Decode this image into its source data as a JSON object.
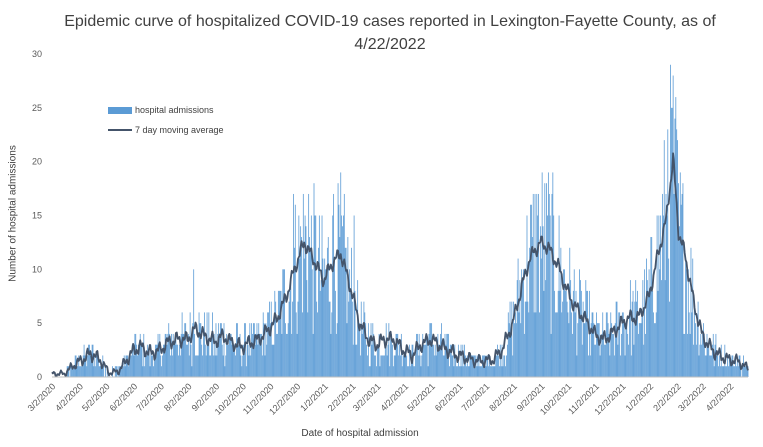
{
  "chart_data": {
    "type": "bar",
    "title": "Epidemic curve of hospitalized COVID-19 cases reported in Lexington-Fayette County, as of 4/22/2022",
    "xlabel": "Date of hospital admission",
    "ylabel": "Number of hospital admissions",
    "ylim": [
      0,
      30
    ],
    "yticks": [
      0,
      5,
      10,
      15,
      20,
      25,
      30
    ],
    "xlim": [
      "3/2/2020",
      "4/22/2022"
    ],
    "x_tick_labels": [
      "3/2/2020",
      "4/2/2020",
      "5/2/2020",
      "6/2/2020",
      "7/2/2020",
      "8/2/2020",
      "9/2/2020",
      "10/2/2020",
      "11/2/2020",
      "12/2/2020",
      "1/2/2021",
      "2/2/2021",
      "3/2/2021",
      "4/2/2021",
      "5/2/2021",
      "6/2/2021",
      "7/2/2021",
      "8/2/2021",
      "9/2/2021",
      "10/2/2021",
      "11/2/2021",
      "12/2/2021",
      "1/2/2022",
      "2/2/2022",
      "3/2/2022",
      "4/2/2022"
    ],
    "legend": {
      "position": "top-left",
      "entries": [
        "hospital admissions",
        "7 day moving average"
      ]
    },
    "grid": false,
    "colors": {
      "bars": "#5b9bd5",
      "moving_average": "#44546a"
    },
    "series": [
      {
        "name": "7 day moving average",
        "kind": "line",
        "points": [
          [
            "3/2/2020",
            0.3
          ],
          [
            "3/16/2020",
            0.3
          ],
          [
            "3/25/2020",
            1.0
          ],
          [
            "4/5/2020",
            1.6
          ],
          [
            "4/15/2020",
            2.2
          ],
          [
            "4/25/2020",
            1.6
          ],
          [
            "5/5/2020",
            0.4
          ],
          [
            "5/15/2020",
            0.5
          ],
          [
            "5/25/2020",
            1.6
          ],
          [
            "6/2/2020",
            2.5
          ],
          [
            "6/10/2020",
            2.8
          ],
          [
            "6/20/2020",
            2.2
          ],
          [
            "7/1/2020",
            2.5
          ],
          [
            "7/10/2020",
            3.2
          ],
          [
            "7/20/2020",
            3.5
          ],
          [
            "8/1/2020",
            3.5
          ],
          [
            "8/10/2020",
            4.5
          ],
          [
            "8/20/2020",
            3.8
          ],
          [
            "9/1/2020",
            3.3
          ],
          [
            "9/10/2020",
            3.8
          ],
          [
            "9/20/2020",
            3.2
          ],
          [
            "10/1/2020",
            2.8
          ],
          [
            "10/10/2020",
            3.2
          ],
          [
            "10/20/2020",
            3.5
          ],
          [
            "11/1/2020",
            4.5
          ],
          [
            "11/10/2020",
            5.5
          ],
          [
            "11/20/2020",
            7.5
          ],
          [
            "12/1/2020",
            10.5
          ],
          [
            "12/10/2020",
            12.5
          ],
          [
            "12/20/2020",
            11.0
          ],
          [
            "1/1/2021",
            9.0
          ],
          [
            "1/10/2021",
            10.5
          ],
          [
            "1/20/2021",
            11.5
          ],
          [
            "2/1/2021",
            8.0
          ],
          [
            "2/10/2021",
            5.0
          ],
          [
            "2/20/2021",
            3.5
          ],
          [
            "3/1/2021",
            3.0
          ],
          [
            "3/10/2021",
            3.5
          ],
          [
            "3/20/2021",
            3.5
          ],
          [
            "4/1/2021",
            2.5
          ],
          [
            "4/10/2021",
            2.0
          ],
          [
            "4/20/2021",
            3.0
          ],
          [
            "5/1/2021",
            3.5
          ],
          [
            "5/10/2021",
            3.0
          ],
          [
            "5/20/2021",
            2.5
          ],
          [
            "6/1/2021",
            2.0
          ],
          [
            "6/10/2021",
            1.8
          ],
          [
            "6/20/2021",
            1.5
          ],
          [
            "7/1/2021",
            1.5
          ],
          [
            "7/10/2021",
            1.6
          ],
          [
            "7/20/2021",
            2.5
          ],
          [
            "8/1/2021",
            5.0
          ],
          [
            "8/10/2021",
            8.0
          ],
          [
            "8/20/2021",
            11.0
          ],
          [
            "9/1/2021",
            12.5
          ],
          [
            "9/10/2021",
            12.0
          ],
          [
            "9/20/2021",
            10.5
          ],
          [
            "10/1/2021",
            8.0
          ],
          [
            "10/10/2021",
            6.5
          ],
          [
            "10/20/2021",
            5.5
          ],
          [
            "11/1/2021",
            4.0
          ],
          [
            "11/10/2021",
            3.5
          ],
          [
            "11/20/2021",
            4.0
          ],
          [
            "12/1/2021",
            5.0
          ],
          [
            "12/10/2021",
            5.5
          ],
          [
            "12/20/2021",
            5.5
          ],
          [
            "1/1/2022",
            7.5
          ],
          [
            "1/10/2022",
            11.0
          ],
          [
            "1/20/2022",
            14.5
          ],
          [
            "1/28/2022",
            20.3
          ],
          [
            "2/3/2022",
            13.5
          ],
          [
            "2/10/2022",
            11.5
          ],
          [
            "2/20/2022",
            7.0
          ],
          [
            "3/1/2022",
            4.0
          ],
          [
            "3/10/2022",
            2.8
          ],
          [
            "3/20/2022",
            2.0
          ],
          [
            "4/1/2022",
            1.6
          ],
          [
            "4/10/2022",
            1.5
          ],
          [
            "4/22/2022",
            0.8
          ]
        ]
      }
    ]
  },
  "notes_peaks": [
    [
      "8/8/2020",
      10
    ],
    [
      "11/28/2020",
      17
    ],
    [
      "12/15/2020",
      17
    ],
    [
      "1/12/2021",
      17
    ],
    [
      "2/4/2021",
      15
    ],
    [
      "9/10/2021",
      19
    ],
    [
      "8/28/2021",
      17
    ],
    [
      "1/22/2022",
      23
    ],
    [
      "1/26/2022",
      25
    ],
    [
      "1/30/2022",
      24
    ]
  ]
}
